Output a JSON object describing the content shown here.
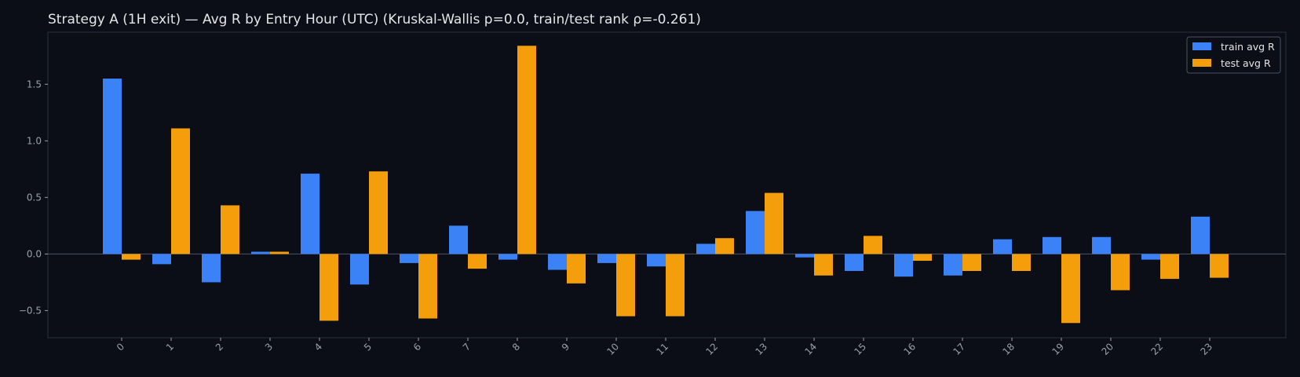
{
  "chart_data": {
    "type": "bar",
    "title": "Strategy A (1H exit) — Avg R by Entry Hour (UTC) (Kruskal-Wallis p=0.0, train/test rank ρ=-0.261)",
    "xlabel": "",
    "ylabel": "",
    "categories": [
      "0",
      "1",
      "2",
      "3",
      "4",
      "5",
      "6",
      "7",
      "8",
      "9",
      "10",
      "11",
      "12",
      "13",
      "14",
      "15",
      "16",
      "17",
      "18",
      "19",
      "20",
      "22",
      "23"
    ],
    "series": [
      {
        "name": "train avg R",
        "color": "#3b82f6",
        "values": [
          1.55,
          -0.09,
          -0.25,
          0.02,
          0.71,
          -0.27,
          -0.08,
          0.25,
          -0.05,
          -0.14,
          -0.08,
          -0.11,
          0.09,
          0.38,
          -0.03,
          -0.15,
          -0.2,
          -0.19,
          0.13,
          0.15,
          0.15,
          -0.05,
          0.33
        ]
      },
      {
        "name": "test avg R",
        "color": "#f59e0b",
        "values": [
          -0.05,
          1.11,
          0.43,
          0.02,
          -0.59,
          0.73,
          -0.57,
          -0.13,
          1.84,
          -0.26,
          -0.55,
          -0.55,
          0.14,
          0.54,
          -0.19,
          0.16,
          -0.06,
          -0.15,
          -0.15,
          -0.61,
          -0.32,
          -0.22,
          -0.21
        ]
      }
    ],
    "yticks": [
      "−0.5",
      "0.0",
      "0.5",
      "1.0",
      "1.5"
    ],
    "ytick_values": [
      -0.5,
      0.0,
      0.5,
      1.0,
      1.5
    ],
    "ylim": [
      -0.74,
      1.96
    ],
    "legend_position": "top-right",
    "grid": false,
    "zero_line": true
  },
  "colors": {
    "background": "#0b0e17",
    "frame": "#2a3040",
    "zero_line": "#4a5366",
    "text": "#e6e6e6",
    "tick_text": "#9aa0aa"
  }
}
